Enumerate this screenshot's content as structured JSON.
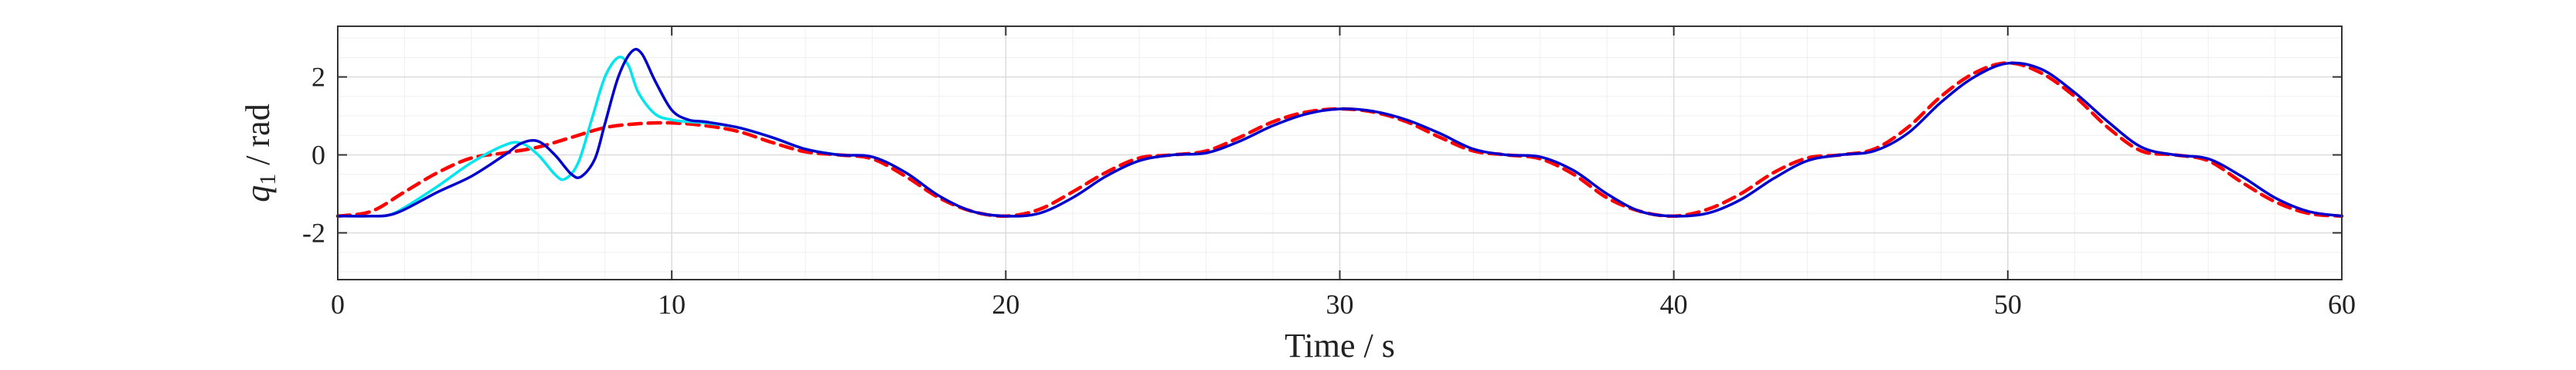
{
  "chart_data": {
    "type": "line",
    "title": "",
    "xlabel": "Time / s",
    "ylabel_symbol": "q",
    "ylabel_subscript": "1",
    "ylabel_unit": " / rad",
    "xlim": [
      0,
      60
    ],
    "ylim": [
      -3.2,
      3.3
    ],
    "xticks": [
      0,
      10,
      20,
      30,
      40,
      50,
      60
    ],
    "xtick_labels": [
      "0",
      "10",
      "20",
      "30",
      "40",
      "50",
      "60"
    ],
    "yticks": [
      -2,
      0,
      2
    ],
    "ytick_labels": [
      "-2",
      "0",
      "2"
    ],
    "grid": true,
    "minor_grid": true,
    "legend": "none",
    "series": [
      {
        "style": "dashed",
        "color": "#ff0000",
        "x": [
          0,
          1,
          2,
          3,
          4,
          5,
          6,
          7,
          8,
          9,
          10,
          11,
          12,
          13,
          14,
          15,
          16,
          17,
          18,
          19,
          20,
          21,
          22,
          23,
          24,
          25,
          26,
          27,
          28,
          29,
          30,
          31,
          32,
          33,
          34,
          35,
          36,
          37,
          38,
          39,
          40,
          41,
          42,
          43,
          44,
          45,
          46,
          47,
          48,
          49,
          50,
          51,
          52,
          53,
          54,
          55,
          56,
          57,
          58,
          59,
          60
        ],
        "y": [
          -1.57,
          -1.45,
          -0.95,
          -0.45,
          -0.08,
          0.05,
          0.2,
          0.45,
          0.7,
          0.8,
          0.82,
          0.75,
          0.6,
          0.32,
          0.08,
          0.0,
          -0.1,
          -0.55,
          -1.1,
          -1.45,
          -1.57,
          -1.4,
          -0.95,
          -0.45,
          -0.08,
          0.0,
          0.1,
          0.45,
          0.85,
          1.1,
          1.18,
          1.1,
          0.85,
          0.45,
          0.1,
          0.0,
          -0.1,
          -0.5,
          -1.1,
          -1.45,
          -1.57,
          -1.4,
          -1.0,
          -0.45,
          -0.08,
          0.0,
          0.15,
          0.7,
          1.5,
          2.1,
          2.36,
          2.1,
          1.5,
          0.7,
          0.1,
          0.0,
          -0.15,
          -0.7,
          -1.2,
          -1.5,
          -1.57
        ]
      },
      {
        "style": "solid",
        "color": "#00e5ee",
        "x": [
          0,
          1,
          1.5,
          2,
          3,
          4,
          5,
          5.5,
          6,
          6.5,
          6.8,
          7.2,
          7.6,
          8.0,
          8.4,
          8.7,
          9.0,
          9.5,
          10,
          10.5,
          11,
          12,
          13,
          14,
          15
        ],
        "y": [
          -1.57,
          -1.57,
          -1.55,
          -1.35,
          -0.8,
          -0.2,
          0.25,
          0.3,
          0.0,
          -0.5,
          -0.62,
          -0.2,
          0.9,
          2.0,
          2.5,
          2.3,
          1.6,
          1.05,
          0.9,
          0.85,
          0.82,
          0.7,
          0.45,
          0.15,
          0.0
        ]
      },
      {
        "style": "solid",
        "color": "#0000cd",
        "x": [
          0,
          1,
          1.5,
          2,
          3,
          4,
          5,
          5.5,
          6,
          6.5,
          7,
          7.3,
          7.7,
          8.0,
          8.4,
          8.8,
          9.1,
          9.5,
          10,
          10.5,
          11,
          12,
          13,
          14,
          15,
          16,
          17,
          18,
          19,
          20,
          21,
          22,
          23,
          24,
          25,
          26,
          27,
          28,
          29,
          30,
          31,
          32,
          33,
          34,
          35,
          36,
          37,
          38,
          39,
          40,
          41,
          42,
          43,
          44,
          45,
          46,
          47,
          48,
          49,
          50,
          51,
          52,
          53,
          54,
          55,
          56,
          57,
          58,
          59,
          60
        ],
        "y": [
          -1.57,
          -1.57,
          -1.55,
          -1.4,
          -0.95,
          -0.55,
          0.0,
          0.3,
          0.35,
          0.0,
          -0.5,
          -0.55,
          -0.1,
          0.8,
          2.0,
          2.65,
          2.6,
          1.9,
          1.15,
          0.9,
          0.85,
          0.7,
          0.45,
          0.15,
          0.0,
          -0.05,
          -0.45,
          -1.05,
          -1.45,
          -1.57,
          -1.5,
          -1.1,
          -0.55,
          -0.15,
          0.0,
          0.05,
          0.35,
          0.75,
          1.05,
          1.18,
          1.12,
          0.9,
          0.55,
          0.15,
          0.0,
          -0.05,
          -0.4,
          -1.0,
          -1.45,
          -1.57,
          -1.5,
          -1.15,
          -0.6,
          -0.15,
          0.0,
          0.1,
          0.55,
          1.35,
          2.0,
          2.35,
          2.2,
          1.6,
          0.85,
          0.2,
          0.0,
          -0.1,
          -0.55,
          -1.1,
          -1.45,
          -1.57
        ]
      }
    ]
  }
}
